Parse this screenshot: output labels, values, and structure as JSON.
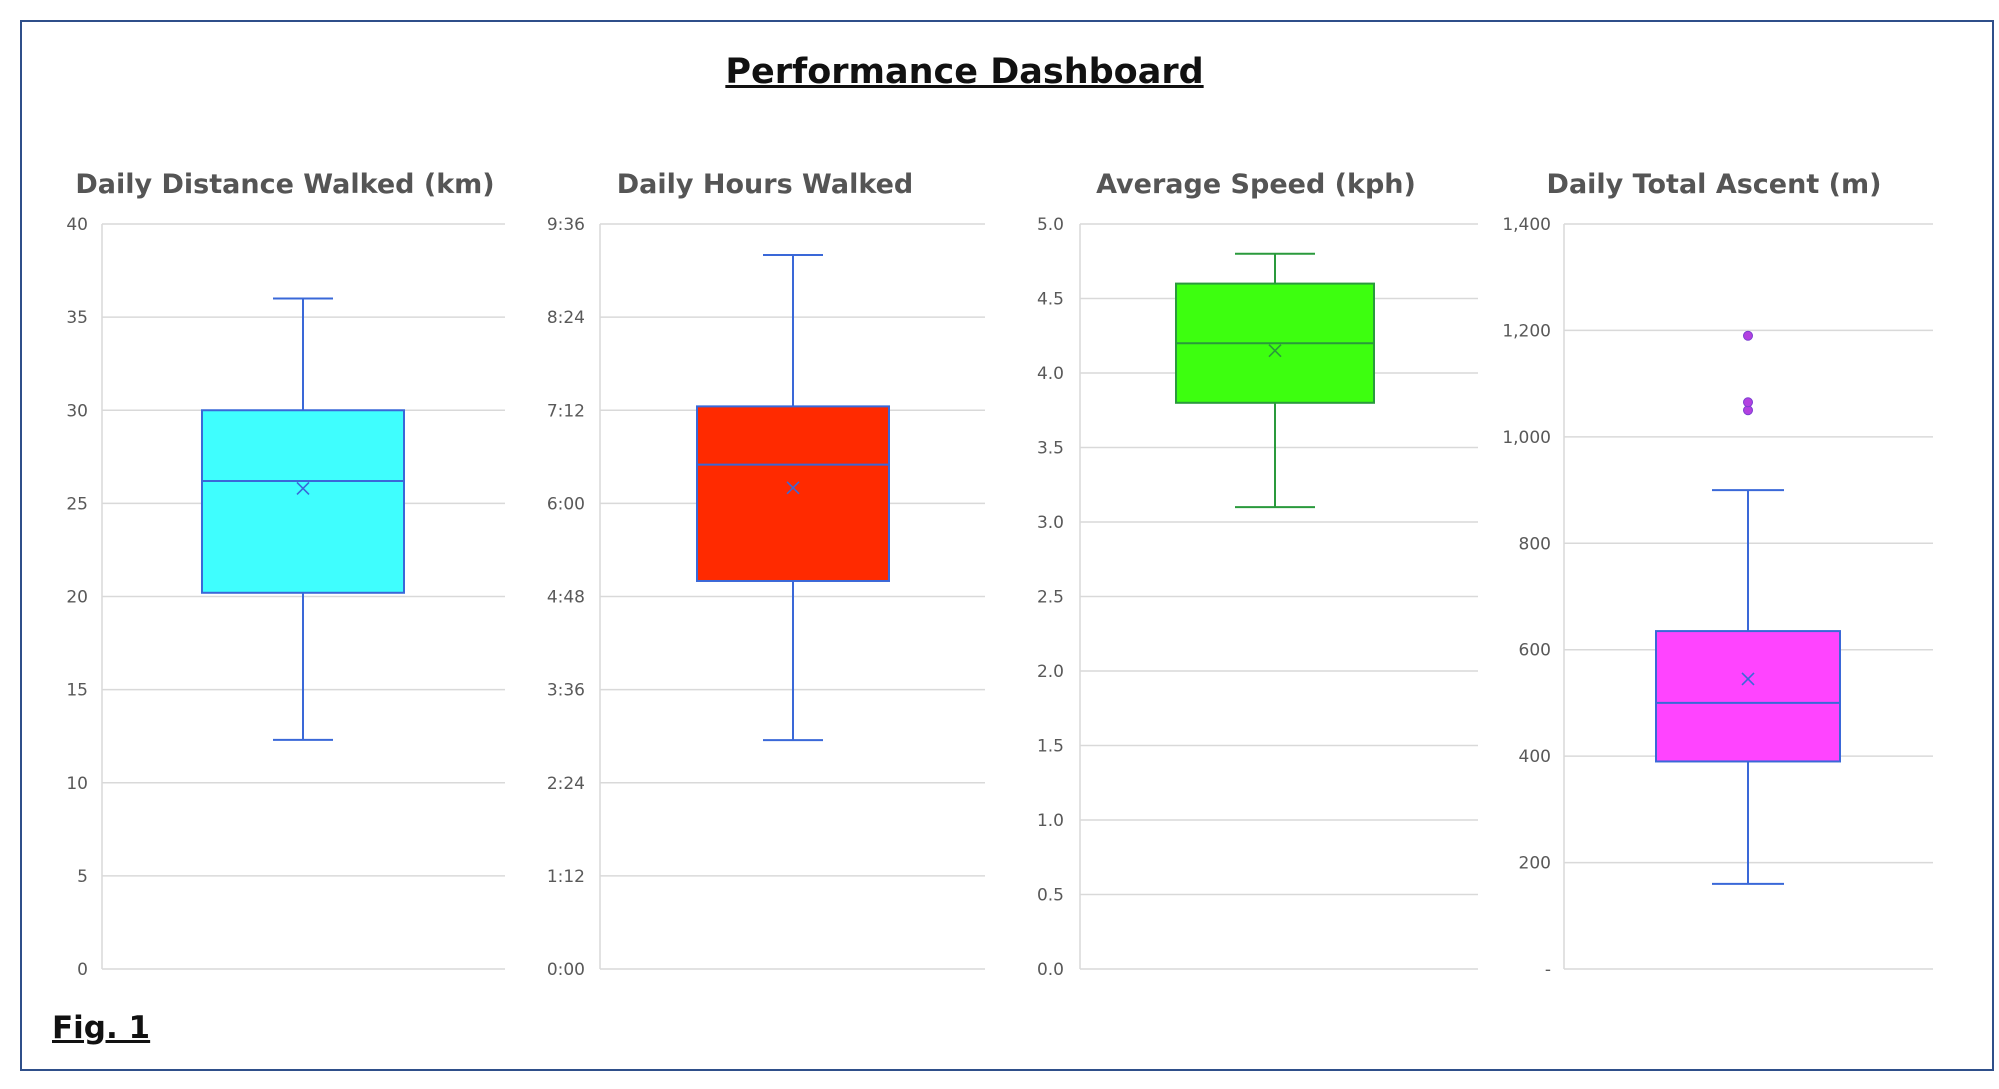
{
  "dashboard": {
    "title": "Performance Dashboard",
    "figure_label": "Fig. 1"
  },
  "chart_data": [
    {
      "type": "box",
      "title": "Daily Distance Walked (km)",
      "ylim": [
        0,
        40
      ],
      "ticks": [
        0,
        5,
        10,
        15,
        20,
        25,
        30,
        35,
        40
      ],
      "tick_labels": [
        "0",
        "5",
        "10",
        "15",
        "20",
        "25",
        "30",
        "35",
        "40"
      ],
      "box": {
        "min": 12.3,
        "q1": 20.2,
        "median": 26.2,
        "q3": 30,
        "max": 36,
        "mean": 25.8,
        "outliers": []
      },
      "fill": "#3ffefe",
      "stroke": "#3a68d8"
    },
    {
      "type": "box",
      "title": "Daily Hours Walked",
      "ylim": [
        0,
        9.6
      ],
      "ticks": [
        0,
        1.2,
        2.4,
        3.6,
        4.8,
        6.0,
        7.2,
        8.4,
        9.6
      ],
      "tick_labels": [
        "0:00",
        "1:12",
        "2:24",
        "3:36",
        "4:48",
        "6:00",
        "7:12",
        "8:24",
        "9:36"
      ],
      "box": {
        "min": 2.95,
        "q1": 5.0,
        "median": 6.5,
        "q3": 7.25,
        "max": 9.2,
        "mean": 6.2,
        "outliers": []
      },
      "fill": "#ff2a00",
      "stroke": "#3a68d8"
    },
    {
      "type": "box",
      "title": "Average Speed (kph)",
      "ylim": [
        0,
        5
      ],
      "ticks": [
        0,
        0.5,
        1,
        1.5,
        2,
        2.5,
        3,
        3.5,
        4,
        4.5,
        5
      ],
      "tick_labels": [
        "0.0",
        "0.5",
        "1.0",
        "1.5",
        "2.0",
        "2.5",
        "3.0",
        "3.5",
        "4.0",
        "4.5",
        "5.0"
      ],
      "box": {
        "min": 3.1,
        "q1": 3.8,
        "median": 4.2,
        "q3": 4.6,
        "max": 4.8,
        "mean": 4.15,
        "outliers": []
      },
      "fill": "#3dff0f",
      "stroke": "#2a9a3c"
    },
    {
      "type": "box",
      "title": "Daily Total Ascent (m)",
      "ylim": [
        0,
        1400
      ],
      "ticks": [
        0,
        200,
        400,
        600,
        800,
        1000,
        1200,
        1400
      ],
      "tick_labels": [
        "-",
        "200",
        "400",
        "600",
        "800",
        "1,000",
        "1,200",
        "1,400"
      ],
      "box": {
        "min": 160,
        "q1": 390,
        "median": 500,
        "q3": 635,
        "max": 900,
        "mean": 545,
        "outliers": [
          1050,
          1065,
          1190
        ]
      },
      "fill": "#ff44ff",
      "stroke": "#3a68d8"
    }
  ]
}
